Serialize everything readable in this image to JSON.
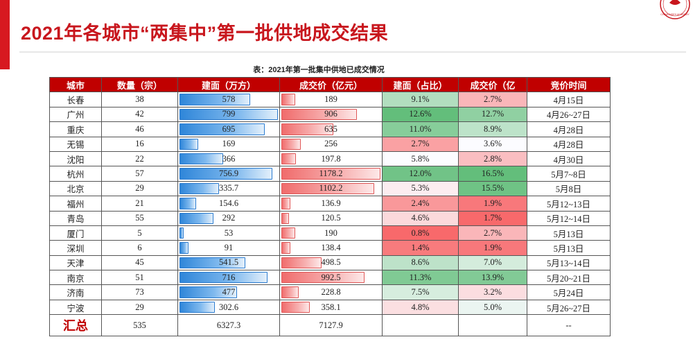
{
  "slide": {
    "title": "2021年各城市“两集中”第一批供地成交结果",
    "caption": "表：2021年第一批集中供地已成交情况",
    "accent_color": "#d71920",
    "logo_text": "CHINA INDEX ACADEMY"
  },
  "table": {
    "headers": [
      "城市",
      "数量（宗）",
      "建面（万方）",
      "成交价（亿元）",
      "建面（占比）",
      "成交价（亿",
      "竞价时间"
    ],
    "rows": [
      {
        "city": "长春",
        "count": "38",
        "area": "578",
        "price": "189",
        "area_share": "9.1%",
        "price_share": "2.7%",
        "time": "4月15日"
      },
      {
        "city": "广州",
        "count": "42",
        "area": "799",
        "price": "906",
        "area_share": "12.6%",
        "price_share": "12.7%",
        "time": "4月26~27日"
      },
      {
        "city": "重庆",
        "count": "46",
        "area": "695",
        "price": "635",
        "area_share": "11.0%",
        "price_share": "8.9%",
        "time": "4月28日"
      },
      {
        "city": "无锡",
        "count": "16",
        "area": "169",
        "price": "256",
        "area_share": "2.7%",
        "price_share": "3.6%",
        "time": "4月28日"
      },
      {
        "city": "沈阳",
        "count": "22",
        "area": "366",
        "price": "197.8",
        "area_share": "5.8%",
        "price_share": "2.8%",
        "time": "4月30日"
      },
      {
        "city": "杭州",
        "count": "57",
        "area": "756.9",
        "price": "1178.2",
        "area_share": "12.0%",
        "price_share": "16.5%",
        "time": "5月7~8日"
      },
      {
        "city": "北京",
        "count": "29",
        "area": "335.7",
        "price": "1102.2",
        "area_share": "5.3%",
        "price_share": "15.5%",
        "time": "5月8日"
      },
      {
        "city": "福州",
        "count": "21",
        "area": "154.6",
        "price": "136.9",
        "area_share": "2.4%",
        "price_share": "1.9%",
        "time": "5月12~13日"
      },
      {
        "city": "青岛",
        "count": "55",
        "area": "292",
        "price": "120.5",
        "area_share": "4.6%",
        "price_share": "1.7%",
        "time": "5月12~14日"
      },
      {
        "city": "厦门",
        "count": "5",
        "area": "53",
        "price": "190",
        "area_share": "0.8%",
        "price_share": "2.7%",
        "time": "5月13日"
      },
      {
        "city": "深圳",
        "count": "6",
        "area": "91",
        "price": "138.4",
        "area_share": "1.4%",
        "price_share": "1.9%",
        "time": "5月13日"
      },
      {
        "city": "天津",
        "count": "45",
        "area": "541.5",
        "price": "498.5",
        "area_share": "8.6%",
        "price_share": "7.0%",
        "time": "5月13~14日"
      },
      {
        "city": "南京",
        "count": "51",
        "area": "716",
        "price": "992.5",
        "area_share": "11.3%",
        "price_share": "13.9%",
        "time": "5月20~21日"
      },
      {
        "city": "济南",
        "count": "73",
        "area": "477",
        "price": "228.8",
        "area_share": "7.5%",
        "price_share": "3.2%",
        "time": "5月24日"
      },
      {
        "city": "宁波",
        "count": "29",
        "area": "302.6",
        "price": "358.1",
        "area_share": "4.8%",
        "price_share": "5.0%",
        "time": "5月26~27日"
      }
    ],
    "total": {
      "label": "汇总",
      "count": "535",
      "area": "6327.3",
      "price": "7127.9",
      "area_share": "",
      "price_share": "",
      "time": "--"
    },
    "colors": {
      "header_bg": "#c00000",
      "bar_blue": "#2f86d9",
      "bar_red": "#f06c6c",
      "scale_green": "#63be7b",
      "scale_white": "#fcfcff",
      "scale_red": "#f8696b"
    }
  }
}
